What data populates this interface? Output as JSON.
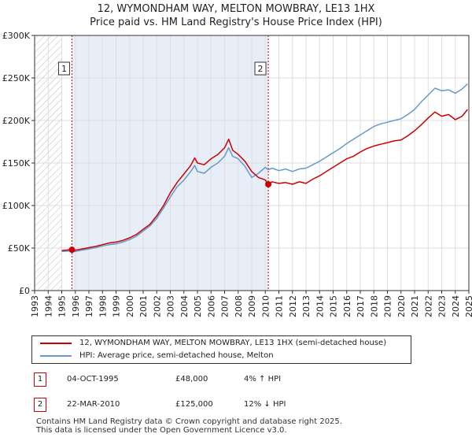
{
  "title_line1": "12, WYMONDHAM WAY, MELTON MOWBRAY, LE13 1HX",
  "title_line2": "Price paid vs. HM Land Registry's House Price Index (HPI)",
  "colors": {
    "property": "#cc0000",
    "hpi": "#6699cc",
    "shade": "#e8eef7",
    "vline": "#cc0000"
  },
  "chart_data": {
    "type": "line",
    "ylim": [
      0,
      300000
    ],
    "xlim": [
      1993,
      2025
    ],
    "yticks": [
      0,
      50000,
      100000,
      150000,
      200000,
      250000,
      300000
    ],
    "ytick_labels": [
      "£0",
      "£50K",
      "£100K",
      "£150K",
      "£200K",
      "£250K",
      "£300K"
    ],
    "xtick_labels": [
      "1993",
      "1994",
      "1995",
      "1996",
      "1997",
      "1998",
      "1999",
      "2000",
      "2001",
      "2002",
      "2003",
      "2004",
      "2005",
      "2006",
      "2007",
      "2008",
      "2009",
      "2010",
      "2011",
      "2012",
      "2013",
      "2014",
      "2015",
      "2016",
      "2017",
      "2018",
      "2019",
      "2020",
      "2021",
      "2022",
      "2023",
      "2024",
      "2025"
    ],
    "data_start": 1995.0,
    "shaded_span": [
      1995.75,
      2010.22
    ],
    "series": [
      {
        "name": "12, WYMONDHAM WAY, MELTON MOWBRAY, LE13 1HX (semi-detached house)",
        "color": "#cc0000",
        "points": [
          [
            1995.0,
            47000
          ],
          [
            1995.5,
            48000
          ],
          [
            1995.75,
            48000
          ],
          [
            1996.0,
            47500
          ],
          [
            1996.5,
            49000
          ],
          [
            1997.0,
            50500
          ],
          [
            1997.5,
            52000
          ],
          [
            1998.0,
            54000
          ],
          [
            1998.5,
            56000
          ],
          [
            1999.0,
            57000
          ],
          [
            1999.5,
            59000
          ],
          [
            2000.0,
            62000
          ],
          [
            2000.5,
            66000
          ],
          [
            2001.0,
            72000
          ],
          [
            2001.5,
            78000
          ],
          [
            2002.0,
            88000
          ],
          [
            2002.5,
            100000
          ],
          [
            2003.0,
            115000
          ],
          [
            2003.5,
            127000
          ],
          [
            2004.0,
            137000
          ],
          [
            2004.5,
            147000
          ],
          [
            2004.8,
            156000
          ],
          [
            2005.0,
            150000
          ],
          [
            2005.5,
            148000
          ],
          [
            2006.0,
            155000
          ],
          [
            2006.5,
            160000
          ],
          [
            2007.0,
            168000
          ],
          [
            2007.3,
            178000
          ],
          [
            2007.6,
            165000
          ],
          [
            2008.0,
            160000
          ],
          [
            2008.5,
            152000
          ],
          [
            2009.0,
            140000
          ],
          [
            2009.5,
            133000
          ],
          [
            2010.0,
            130000
          ],
          [
            2010.22,
            125000
          ],
          [
            2010.5,
            128000
          ],
          [
            2011.0,
            126000
          ],
          [
            2011.5,
            127000
          ],
          [
            2012.0,
            125000
          ],
          [
            2012.5,
            128000
          ],
          [
            2013.0,
            126000
          ],
          [
            2013.5,
            131000
          ],
          [
            2014.0,
            135000
          ],
          [
            2014.5,
            140000
          ],
          [
            2015.0,
            145000
          ],
          [
            2015.5,
            150000
          ],
          [
            2016.0,
            155000
          ],
          [
            2016.5,
            158000
          ],
          [
            2017.0,
            163000
          ],
          [
            2017.5,
            167000
          ],
          [
            2018.0,
            170000
          ],
          [
            2018.5,
            172000
          ],
          [
            2019.0,
            174000
          ],
          [
            2019.5,
            176000
          ],
          [
            2020.0,
            177000
          ],
          [
            2020.5,
            182000
          ],
          [
            2021.0,
            188000
          ],
          [
            2021.5,
            195000
          ],
          [
            2022.0,
            203000
          ],
          [
            2022.5,
            210000
          ],
          [
            2023.0,
            205000
          ],
          [
            2023.5,
            207000
          ],
          [
            2024.0,
            201000
          ],
          [
            2024.5,
            205000
          ],
          [
            2024.9,
            213000
          ]
        ]
      },
      {
        "name": "HPI: Average price, semi-detached house, Melton",
        "color": "#6699cc",
        "points": [
          [
            1995.0,
            46000
          ],
          [
            1995.5,
            46500
          ],
          [
            1996.0,
            46000
          ],
          [
            1996.5,
            47500
          ],
          [
            1997.0,
            49000
          ],
          [
            1997.5,
            50500
          ],
          [
            1998.0,
            52500
          ],
          [
            1998.5,
            54000
          ],
          [
            1999.0,
            55000
          ],
          [
            1999.5,
            57000
          ],
          [
            2000.0,
            60000
          ],
          [
            2000.5,
            64000
          ],
          [
            2001.0,
            70000
          ],
          [
            2001.5,
            76000
          ],
          [
            2002.0,
            85000
          ],
          [
            2002.5,
            97000
          ],
          [
            2003.0,
            110000
          ],
          [
            2003.5,
            122000
          ],
          [
            2004.0,
            130000
          ],
          [
            2004.5,
            140000
          ],
          [
            2004.8,
            147000
          ],
          [
            2005.0,
            140000
          ],
          [
            2005.5,
            138000
          ],
          [
            2006.0,
            145000
          ],
          [
            2006.5,
            150000
          ],
          [
            2007.0,
            158000
          ],
          [
            2007.3,
            168000
          ],
          [
            2007.6,
            158000
          ],
          [
            2008.0,
            155000
          ],
          [
            2008.5,
            146000
          ],
          [
            2009.0,
            133000
          ],
          [
            2009.5,
            138000
          ],
          [
            2010.0,
            145000
          ],
          [
            2010.22,
            142000
          ],
          [
            2010.5,
            144000
          ],
          [
            2011.0,
            141000
          ],
          [
            2011.5,
            143000
          ],
          [
            2012.0,
            140000
          ],
          [
            2012.5,
            143000
          ],
          [
            2013.0,
            144000
          ],
          [
            2013.5,
            148000
          ],
          [
            2014.0,
            152000
          ],
          [
            2014.5,
            157000
          ],
          [
            2015.0,
            162000
          ],
          [
            2015.5,
            167000
          ],
          [
            2016.0,
            173000
          ],
          [
            2016.5,
            178000
          ],
          [
            2017.0,
            183000
          ],
          [
            2017.5,
            188000
          ],
          [
            2018.0,
            193000
          ],
          [
            2018.5,
            196000
          ],
          [
            2019.0,
            198000
          ],
          [
            2019.5,
            200000
          ],
          [
            2020.0,
            202000
          ],
          [
            2020.5,
            207000
          ],
          [
            2021.0,
            213000
          ],
          [
            2021.5,
            222000
          ],
          [
            2022.0,
            230000
          ],
          [
            2022.5,
            238000
          ],
          [
            2023.0,
            235000
          ],
          [
            2023.5,
            236000
          ],
          [
            2024.0,
            232000
          ],
          [
            2024.5,
            237000
          ],
          [
            2024.9,
            243000
          ]
        ]
      }
    ],
    "markers": [
      {
        "label": "1",
        "x": 1995.75,
        "value": 48000
      },
      {
        "label": "2",
        "x": 2010.22,
        "value": 125000
      }
    ]
  },
  "legend": {
    "items": [
      {
        "label": "12, WYMONDHAM WAY, MELTON MOWBRAY, LE13 1HX (semi-detached house)"
      },
      {
        "label": "HPI: Average price, semi-detached house, Melton"
      }
    ]
  },
  "annotations": [
    {
      "num": "1",
      "date": "04-OCT-1995",
      "price": "£48,000",
      "hpi": "4% ↑ HPI"
    },
    {
      "num": "2",
      "date": "22-MAR-2010",
      "price": "£125,000",
      "hpi": "12% ↓ HPI"
    }
  ],
  "footer": {
    "line1": "Contains HM Land Registry data © Crown copyright and database right 2025.",
    "line2": "This data is licensed under the Open Government Licence v3.0."
  }
}
